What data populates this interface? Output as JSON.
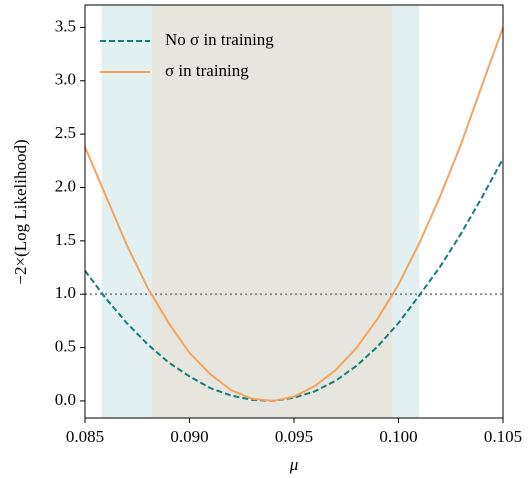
{
  "chart_data": {
    "type": "line",
    "x_label": "μ",
    "y_label": "−2×(Log Likelihood)",
    "x": [
      0.085,
      0.086,
      0.087,
      0.088,
      0.089,
      0.09,
      0.091,
      0.092,
      0.093,
      0.094,
      0.095,
      0.096,
      0.097,
      0.098,
      0.099,
      0.1,
      0.101,
      0.102,
      0.103,
      0.104,
      0.105
    ],
    "series": [
      {
        "name": "No σ in training",
        "color": "#137e7a",
        "dash": true,
        "values": [
          1.22,
          0.96,
          0.73,
          0.53,
          0.36,
          0.23,
          0.12,
          0.05,
          0.01,
          0.0,
          0.03,
          0.09,
          0.19,
          0.33,
          0.51,
          0.73,
          0.99,
          1.26,
          1.57,
          1.91,
          2.27
        ]
      },
      {
        "name": "σ in training",
        "color": "#f4a460",
        "dash": false,
        "values": [
          2.38,
          1.92,
          1.46,
          1.06,
          0.73,
          0.45,
          0.25,
          0.1,
          0.02,
          0.0,
          0.04,
          0.14,
          0.29,
          0.5,
          0.77,
          1.09,
          1.48,
          1.92,
          2.41,
          2.96,
          3.5
        ]
      }
    ],
    "bands": [
      {
        "from": 0.0858,
        "to": 0.101,
        "color": "#e3f0f1"
      },
      {
        "from": 0.0882,
        "to": 0.0997,
        "color": "#e6e6df"
      }
    ],
    "hline": 1.0,
    "hline_color": "#888888",
    "xlim": [
      0.085,
      0.105
    ],
    "ylim": [
      -0.16,
      3.71
    ],
    "xticks": [
      0.085,
      {
        "value": 0.09,
        "label": "0.090"
      },
      0.095,
      {
        "value": 0.1,
        "label": "0.100"
      },
      0.105
    ],
    "yticks": [
      {
        "value": 0,
        "label": "0.0"
      },
      0.5,
      {
        "value": 1,
        "label": "1.0"
      },
      1.5,
      {
        "value": 2,
        "label": "2.0"
      },
      2.5,
      {
        "value": 3,
        "label": "3.0"
      },
      3.5
    ],
    "legend": "upper-left"
  }
}
